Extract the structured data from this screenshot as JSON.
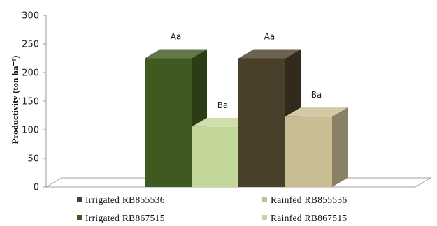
{
  "chart_data": {
    "type": "bar",
    "style": "3d-clustered",
    "title": "",
    "ylabel": "Productivity (ton ha⁻¹)",
    "ylim": [
      0,
      300
    ],
    "yticks": [
      0,
      50,
      100,
      150,
      200,
      250,
      300
    ],
    "grid": false,
    "legend_position": "bottom",
    "series": [
      {
        "name": "Irrigated  RB867515",
        "value": 225,
        "label": "Aa",
        "color": "#3f5a21"
      },
      {
        "name": "Rainfed  RB867515",
        "value": 105,
        "label": "Ba",
        "color": "#c4d79a"
      },
      {
        "name": "Irrigated  RB855536",
        "value": 225,
        "label": "Aa",
        "color": "#4a3f2a"
      },
      {
        "name": "Rainfed  RB855536",
        "value": 123,
        "label": "Ba",
        "color": "#c9bd94"
      }
    ],
    "legend_order": [
      2,
      3,
      0,
      1
    ]
  }
}
